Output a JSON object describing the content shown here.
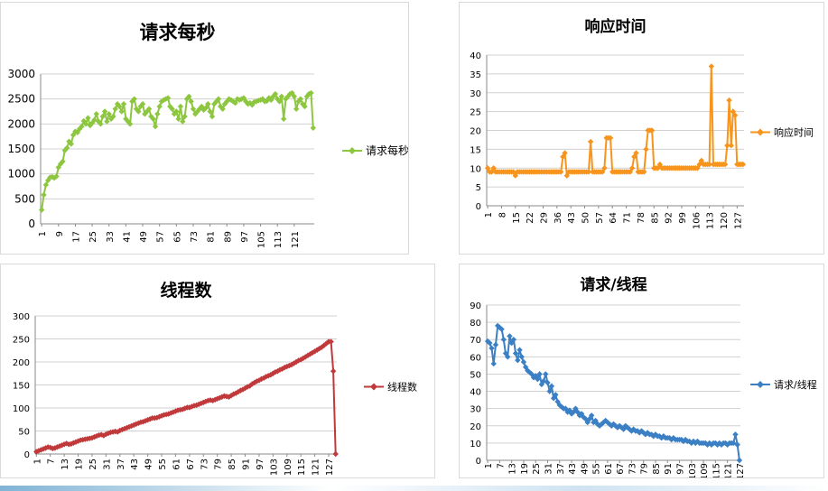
{
  "chart_data": [
    {
      "type": "line",
      "title": "请求每秒",
      "legend": "right",
      "color": "#8dc63f",
      "xlabel": "",
      "ylabel": "",
      "ylim": [
        0,
        3000
      ],
      "yticks": [
        0,
        500,
        1000,
        1500,
        2000,
        2500,
        3000
      ],
      "xticks": [
        "1",
        "9",
        "17",
        "25",
        "33",
        "41",
        "49",
        "57",
        "65",
        "73",
        "81",
        "89",
        "97",
        "105",
        "113",
        "121"
      ],
      "series": [
        {
          "name": "请求每秒",
          "values": [
            280,
            580,
            780,
            870,
            930,
            940,
            920,
            950,
            1130,
            1200,
            1250,
            1470,
            1520,
            1650,
            1600,
            1780,
            1850,
            1830,
            1900,
            1950,
            2060,
            2000,
            2120,
            1970,
            2020,
            2080,
            2200,
            2050,
            2000,
            2150,
            2250,
            2050,
            2200,
            2100,
            2150,
            2300,
            2400,
            2350,
            2250,
            2400,
            2100,
            2050,
            2000,
            2450,
            2500,
            2300,
            2250,
            2350,
            2400,
            2200,
            2250,
            2300,
            2150,
            2100,
            1950,
            2200,
            2350,
            2450,
            2480,
            2500,
            2520,
            2350,
            2300,
            2200,
            2250,
            2100,
            2350,
            2050,
            2150,
            2500,
            2550,
            2450,
            2300,
            2200,
            2250,
            2300,
            2350,
            2280,
            2320,
            2400,
            2250,
            2150,
            2400,
            2450,
            2500,
            2350,
            2300,
            2400,
            2450,
            2500,
            2480,
            2450,
            2420,
            2500,
            2480,
            2500,
            2520,
            2450,
            2400,
            2420,
            2380,
            2440,
            2450,
            2470,
            2480,
            2500,
            2450,
            2460,
            2520,
            2480,
            2550,
            2600,
            2500,
            2450,
            2550,
            2100,
            2500,
            2550,
            2600,
            2620,
            2550,
            2300,
            2450,
            2500,
            2400,
            2350,
            2550,
            2600,
            2620,
            1920
          ]
        }
      ]
    },
    {
      "type": "line",
      "title": "响应时间",
      "legend": "right",
      "color": "#f7941d",
      "xlabel": "",
      "ylabel": "",
      "ylim": [
        0,
        40
      ],
      "yticks": [
        0,
        5,
        10,
        15,
        20,
        25,
        30,
        35,
        40
      ],
      "xticks": [
        "1",
        "8",
        "15",
        "22",
        "29",
        "36",
        "43",
        "50",
        "57",
        "64",
        "71",
        "78",
        "85",
        "92",
        "99",
        "106",
        "113",
        "120",
        "127"
      ],
      "series": [
        {
          "name": "响应时间",
          "values": [
            10,
            9,
            9,
            10,
            9,
            9,
            9,
            9,
            9,
            9,
            9,
            9,
            9,
            9,
            8,
            9,
            9,
            9,
            9,
            9,
            9,
            9,
            9,
            9,
            9,
            9,
            9,
            9,
            9,
            9,
            9,
            9,
            9,
            9,
            9,
            9,
            9,
            9,
            13,
            14,
            8,
            9,
            9,
            9,
            9,
            9,
            9,
            9,
            9,
            9,
            9,
            9,
            17,
            9,
            9,
            9,
            9,
            9,
            9,
            10,
            18,
            18,
            18,
            9,
            9,
            9,
            9,
            9,
            9,
            9,
            9,
            9,
            9,
            10,
            13,
            14,
            9,
            9,
            9,
            9,
            15,
            20,
            20,
            20,
            10,
            10,
            10,
            11,
            10,
            10,
            10,
            10,
            10,
            10,
            10,
            10,
            10,
            10,
            10,
            10,
            10,
            10,
            10,
            10,
            10,
            10,
            10,
            11,
            12,
            11,
            11,
            11,
            11,
            37,
            11,
            11,
            11,
            11,
            11,
            11,
            11,
            16,
            28,
            16,
            25,
            24,
            11,
            11,
            11,
            11
          ]
        }
      ]
    },
    {
      "type": "line",
      "title": "线程数",
      "legend": "right",
      "color": "#c0393b",
      "xlabel": "",
      "ylabel": "",
      "ylim": [
        0,
        300
      ],
      "yticks": [
        0,
        50,
        100,
        150,
        200,
        250,
        300
      ],
      "xticks": [
        "1",
        "7",
        "13",
        "19",
        "25",
        "31",
        "37",
        "43",
        "49",
        "55",
        "61",
        "67",
        "73",
        "79",
        "85",
        "91",
        "97",
        "103",
        "109",
        "115",
        "121",
        "127"
      ],
      "series": [
        {
          "name": "线程数",
          "values": [
            5,
            7,
            9,
            11,
            13,
            15,
            14,
            12,
            13,
            15,
            17,
            19,
            21,
            23,
            21,
            22,
            24,
            26,
            28,
            30,
            31,
            32,
            33,
            34,
            35,
            37,
            39,
            41,
            42,
            40,
            43,
            45,
            47,
            48,
            49,
            48,
            51,
            53,
            55,
            57,
            59,
            61,
            63,
            65,
            67,
            69,
            70,
            72,
            74,
            76,
            78,
            78,
            79,
            81,
            83,
            85,
            86,
            87,
            89,
            91,
            93,
            95,
            96,
            97,
            99,
            101,
            101,
            103,
            105,
            106,
            108,
            110,
            112,
            114,
            116,
            117,
            116,
            118,
            120,
            122,
            124,
            126,
            125,
            124,
            127,
            130,
            132,
            135,
            138,
            140,
            143,
            146,
            148,
            152,
            155,
            158,
            160,
            163,
            165,
            168,
            170,
            172,
            175,
            178,
            180,
            183,
            185,
            188,
            190,
            192,
            194,
            197,
            200,
            203,
            205,
            208,
            211,
            214,
            217,
            220,
            223,
            226,
            229,
            232,
            236,
            240,
            244,
            244,
            180,
            0
          ]
        }
      ]
    },
    {
      "type": "line",
      "title": "请求/线程",
      "legend": "right",
      "color": "#3b7fc4",
      "xlabel": "",
      "ylabel": "",
      "ylim": [
        0,
        90
      ],
      "yticks": [
        0,
        10,
        20,
        30,
        40,
        50,
        60,
        70,
        80,
        90
      ],
      "xticks": [
        "1",
        "7",
        "13",
        "19",
        "25",
        "31",
        "37",
        "43",
        "49",
        "55",
        "61",
        "67",
        "73",
        "79",
        "85",
        "91",
        "97",
        "103",
        "109",
        "115",
        "121",
        "127"
      ],
      "series": [
        {
          "name": "请求/线程",
          "values": [
            69,
            68,
            65,
            56,
            67,
            78,
            77,
            76,
            70,
            62,
            60,
            72,
            68,
            70,
            62,
            58,
            64,
            60,
            57,
            54,
            52,
            51,
            50,
            48,
            49,
            47,
            50,
            44,
            46,
            50,
            45,
            40,
            43,
            36,
            38,
            34,
            32,
            31,
            30,
            30,
            28,
            29,
            27,
            28,
            30,
            28,
            26,
            27,
            25,
            24,
            22,
            24,
            26,
            22,
            23,
            21,
            20,
            21,
            22,
            23,
            22,
            21,
            20,
            21,
            20,
            19,
            20,
            19,
            18,
            20,
            19,
            18,
            17,
            18,
            17,
            17,
            16,
            17,
            16,
            15,
            16,
            15,
            15,
            14,
            15,
            14,
            14,
            13,
            14,
            13,
            13,
            13,
            12,
            13,
            12,
            12,
            12,
            12,
            11,
            12,
            11,
            11,
            10,
            11,
            10,
            11,
            10,
            10,
            10,
            10,
            9,
            10,
            9,
            10,
            10,
            9,
            10,
            9,
            10,
            10,
            9,
            10,
            10,
            10,
            15,
            9,
            0
          ]
        }
      ]
    }
  ]
}
